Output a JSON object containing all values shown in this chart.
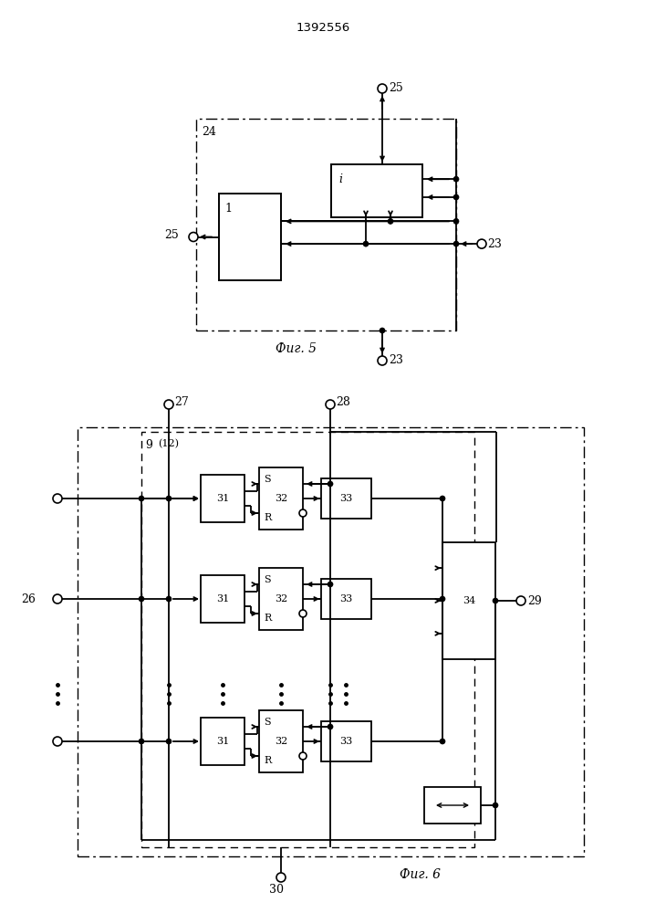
{
  "title": "1392556",
  "fig5_label": "Фиг. 5",
  "fig6_label": "Фиг. 6"
}
